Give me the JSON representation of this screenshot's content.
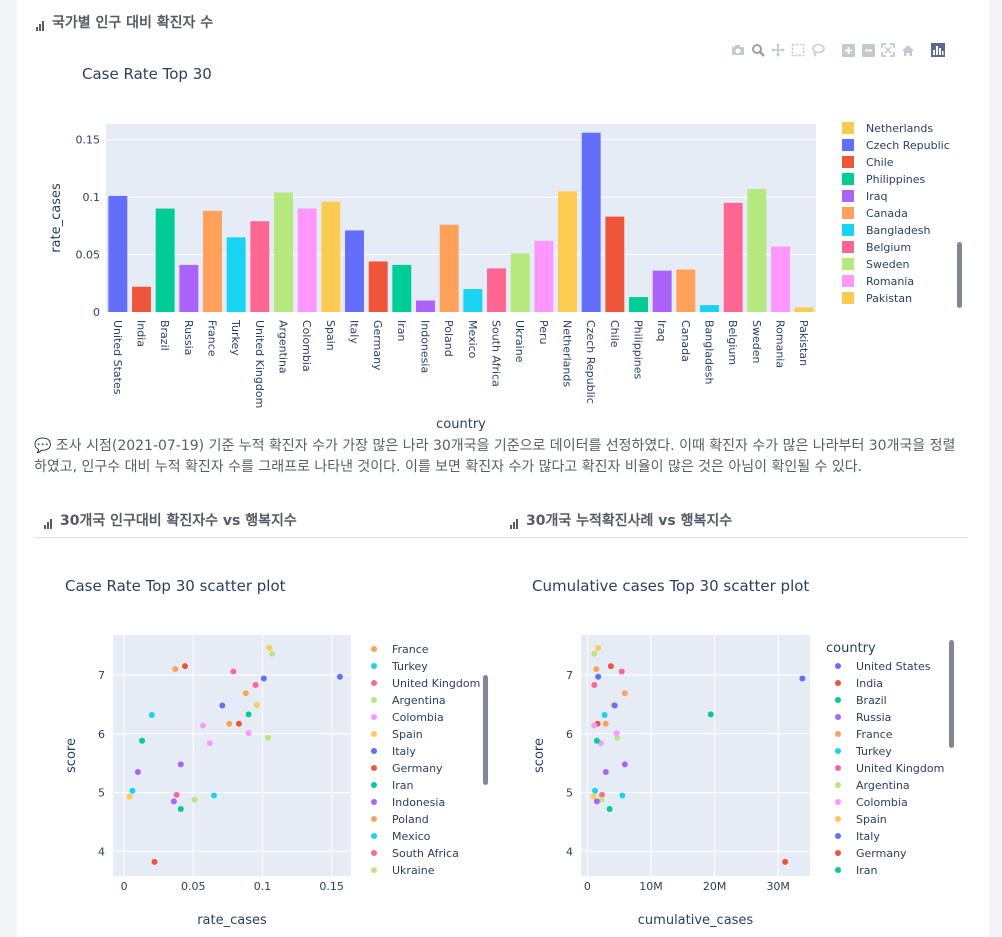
{
  "section1": {
    "title": "국가별 인구 대비 확진자 수"
  },
  "section2": {
    "title": "30개국 인구대비 확진자수 vs 행복지수"
  },
  "section3": {
    "title": "30개국 누적확진사례 vs 행복지수"
  },
  "description": "💬 조사 시점(2021-07-19) 기준 누적 확진자 수가 가장 많은 나라 30개국을 기준으로 데이터를 선정하였다. 이때 확진자 수가 많은 나라부터 30개국을 정렬하였고, 인구수 대비 누적 확진자 수를 그래프로 나타낸 것이다. 이를 보면 확진자 수가 많다고 확진자 비율이 많은 것은 아님이 확인될 수 있다.",
  "toolbar": [
    "camera-icon",
    "zoom-icon",
    "pan-icon",
    "box-select-icon",
    "lasso-select-icon",
    "zoom-in-icon",
    "zoom-out-icon",
    "autoscale-icon",
    "reset-axes-icon",
    "plotly-logo-icon"
  ],
  "colors": [
    "#636efa",
    "#EF553B",
    "#00cc96",
    "#ab63fa",
    "#FFA15A",
    "#19d3f3",
    "#FF6692",
    "#B6E880",
    "#FF97FF",
    "#FECB52"
  ],
  "chart_data": [
    {
      "type": "bar",
      "title": "Case Rate Top 30",
      "xlabel": "country",
      "ylabel": "rate_cases",
      "ylim": [
        0,
        0.1636
      ],
      "yticks": [
        "0",
        "0.05",
        "0.1",
        "0.15"
      ],
      "categories": [
        "United States",
        "India",
        "Brazil",
        "Russia",
        "France",
        "Turkey",
        "United Kingdom",
        "Argentina",
        "Colombia",
        "Spain",
        "Italy",
        "Germany",
        "Iran",
        "Indonesia",
        "Poland",
        "Mexico",
        "South Africa",
        "Ukraine",
        "Peru",
        "Netherlands",
        "Czech Republic",
        "Chile",
        "Philippines",
        "Iraq",
        "Canada",
        "Bangladesh",
        "Belgium",
        "Sweden",
        "Romania",
        "Pakistan"
      ],
      "values": [
        0.101,
        0.022,
        0.09,
        0.041,
        0.088,
        0.065,
        0.079,
        0.104,
        0.09,
        0.096,
        0.071,
        0.044,
        0.041,
        0.01,
        0.076,
        0.02,
        0.038,
        0.051,
        0.062,
        0.105,
        0.156,
        0.083,
        0.013,
        0.036,
        0.037,
        0.006,
        0.095,
        0.107,
        0.057,
        0.004
      ],
      "legend_visible": [
        "Netherlands",
        "Czech Republic",
        "Chile",
        "Philippines",
        "Iraq",
        "Canada",
        "Bangladesh",
        "Belgium",
        "Sweden",
        "Romania",
        "Pakistan"
      ]
    },
    {
      "type": "scatter",
      "title": "Case Rate Top 30 scatter plot",
      "xlabel": "rate_cases",
      "ylabel": "score",
      "xlim": [
        -0.008,
        0.164
      ],
      "ylim": [
        3.58,
        7.68
      ],
      "xticks": [
        {
          "v": 0,
          "label": "0"
        },
        {
          "v": 0.05,
          "label": "0.05"
        },
        {
          "v": 0.1,
          "label": "0.1"
        },
        {
          "v": 0.15,
          "label": "0.15"
        }
      ],
      "yticks": [
        {
          "v": 4,
          "label": "4"
        },
        {
          "v": 5,
          "label": "5"
        },
        {
          "v": 6,
          "label": "6"
        },
        {
          "v": 7,
          "label": "7"
        }
      ],
      "countries": [
        "United States",
        "India",
        "Brazil",
        "Russia",
        "France",
        "Turkey",
        "United Kingdom",
        "Argentina",
        "Colombia",
        "Spain",
        "Italy",
        "Germany",
        "Iran",
        "Indonesia",
        "Poland",
        "Mexico",
        "South Africa",
        "Ukraine",
        "Peru",
        "Netherlands",
        "Czech Republic",
        "Chile",
        "Philippines",
        "Iraq",
        "Canada",
        "Bangladesh",
        "Belgium",
        "Sweden",
        "Romania",
        "Pakistan"
      ],
      "x": [
        0.101,
        0.022,
        0.09,
        0.041,
        0.088,
        0.065,
        0.079,
        0.104,
        0.09,
        0.096,
        0.071,
        0.044,
        0.041,
        0.01,
        0.076,
        0.02,
        0.038,
        0.051,
        0.062,
        0.105,
        0.156,
        0.083,
        0.013,
        0.036,
        0.037,
        0.006,
        0.095,
        0.107,
        0.057,
        0.004
      ],
      "y": [
        6.94,
        3.82,
        6.33,
        5.48,
        6.69,
        4.95,
        7.06,
        5.93,
        6.01,
        6.49,
        6.48,
        7.15,
        4.72,
        5.35,
        6.17,
        6.32,
        4.96,
        4.88,
        5.84,
        7.46,
        6.97,
        6.17,
        5.88,
        4.85,
        7.1,
        5.03,
        6.83,
        7.36,
        6.14,
        4.93
      ],
      "legend_visible": [
        "France",
        "Turkey",
        "United Kingdom",
        "Argentina",
        "Colombia",
        "Spain",
        "Italy",
        "Germany",
        "Iran",
        "Indonesia",
        "Poland",
        "Mexico",
        "South Africa",
        "Ukraine"
      ]
    },
    {
      "type": "scatter",
      "title": "Cumulative cases Top 30 scatter plot",
      "xlabel": "cumulative_cases",
      "ylabel": "score",
      "legend_title": "country",
      "xlim": [
        -1000000,
        35000000
      ],
      "ylim": [
        3.58,
        7.68
      ],
      "xticks": [
        {
          "v": 0,
          "label": "0"
        },
        {
          "v": 10000000,
          "label": "10M"
        },
        {
          "v": 20000000,
          "label": "20M"
        },
        {
          "v": 30000000,
          "label": "30M"
        }
      ],
      "yticks": [
        {
          "v": 4,
          "label": "4"
        },
        {
          "v": 5,
          "label": "5"
        },
        {
          "v": 6,
          "label": "6"
        },
        {
          "v": 7,
          "label": "7"
        }
      ],
      "countries": [
        "United States",
        "India",
        "Brazil",
        "Russia",
        "France",
        "Turkey",
        "United Kingdom",
        "Argentina",
        "Colombia",
        "Spain",
        "Italy",
        "Germany",
        "Iran",
        "Indonesia",
        "Poland",
        "Mexico",
        "South Africa",
        "Ukraine",
        "Peru",
        "Netherlands",
        "Czech Republic",
        "Chile",
        "Philippines",
        "Iraq",
        "Canada",
        "Bangladesh",
        "Belgium",
        "Sweden",
        "Romania",
        "Pakistan"
      ],
      "x": [
        33800000,
        31100000,
        19400000,
        5900000,
        5900000,
        5500000,
        5400000,
        4700000,
        4600000,
        4100000,
        4300000,
        3700000,
        3500000,
        2900000,
        2900000,
        2700000,
        2300000,
        2200000,
        2100000,
        1700000,
        1700000,
        1600000,
        1500000,
        1500000,
        1400000,
        1200000,
        1100000,
        1100000,
        1100000,
        1000000
      ],
      "y": [
        6.94,
        3.82,
        6.33,
        5.48,
        6.69,
        4.95,
        7.06,
        5.93,
        6.01,
        6.49,
        6.48,
        7.15,
        4.72,
        5.35,
        6.17,
        6.32,
        4.96,
        4.88,
        5.84,
        7.46,
        6.97,
        6.17,
        5.88,
        4.85,
        7.1,
        5.03,
        6.83,
        7.36,
        6.14,
        4.93
      ],
      "legend_visible": [
        "United States",
        "India",
        "Brazil",
        "Russia",
        "France",
        "Turkey",
        "United Kingdom",
        "Argentina",
        "Colombia",
        "Spain",
        "Italy",
        "Germany",
        "Iran"
      ]
    }
  ]
}
